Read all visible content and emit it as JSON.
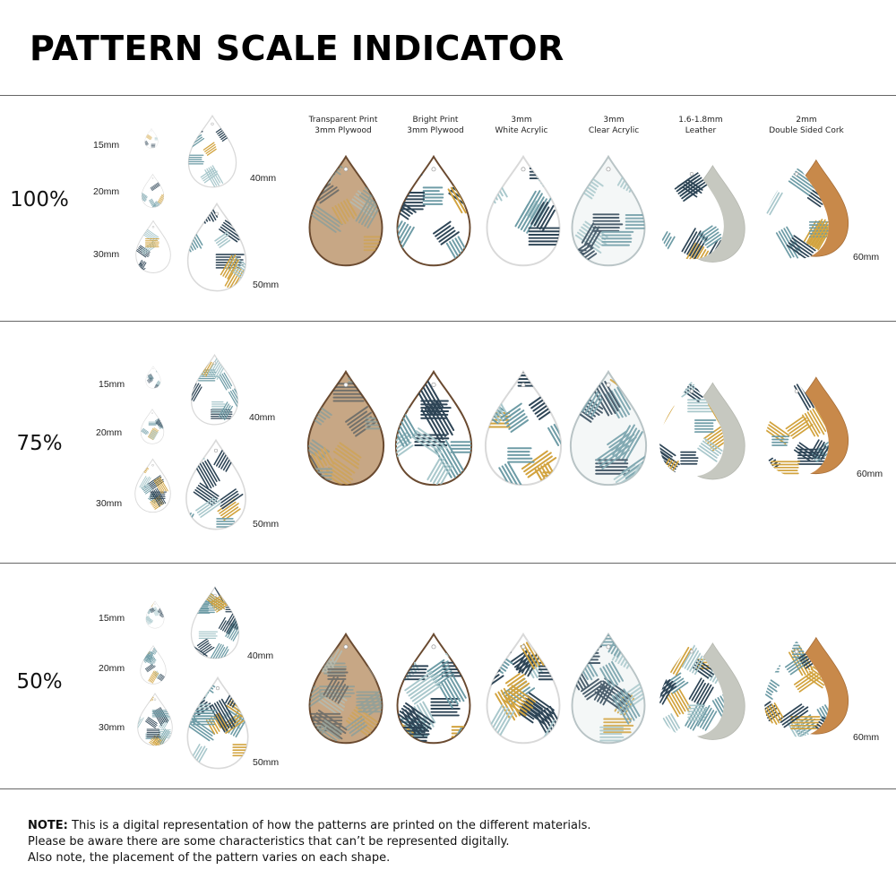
{
  "title": "PATTERN SCALE INDICATOR",
  "materials": [
    {
      "line1": "Transparent Print",
      "line2": "3mm Plywood",
      "kind": "wood"
    },
    {
      "line1": "Bright Print",
      "line2": "3mm Plywood",
      "kind": "bright"
    },
    {
      "line1": "3mm",
      "line2": "White Acrylic",
      "kind": "white"
    },
    {
      "line1": "3mm",
      "line2": "Clear Acrylic",
      "kind": "clear"
    },
    {
      "line1": "1.6-1.8mm",
      "line2": "Leather",
      "kind": "leather"
    },
    {
      "line1": "2mm",
      "line2": "Double Sided Cork",
      "kind": "cork"
    }
  ],
  "sizes": [
    "15mm",
    "20mm",
    "30mm",
    "40mm",
    "50mm"
  ],
  "material_size": "60mm",
  "sections": [
    {
      "percent": "100%"
    },
    {
      "percent": "75%"
    },
    {
      "percent": "50%"
    }
  ],
  "colors": {
    "navy": "#2e4556",
    "teal": "#6e9ca6",
    "light_teal": "#a9c8cc",
    "mustard": "#d2a33e",
    "wood": "#c7a785",
    "wood_edge": "#6a4a30",
    "cork": "#c8894a",
    "suede": "#c6c8c0"
  },
  "note": {
    "bold": "NOTE:",
    "line1": " This is a digital representation of how the patterns are printed on the different materials.",
    "line2": "Please be aware there are some characteristics that can’t be represented digitally.",
    "line3": "Also note, the placement of the pattern varies on each shape."
  }
}
